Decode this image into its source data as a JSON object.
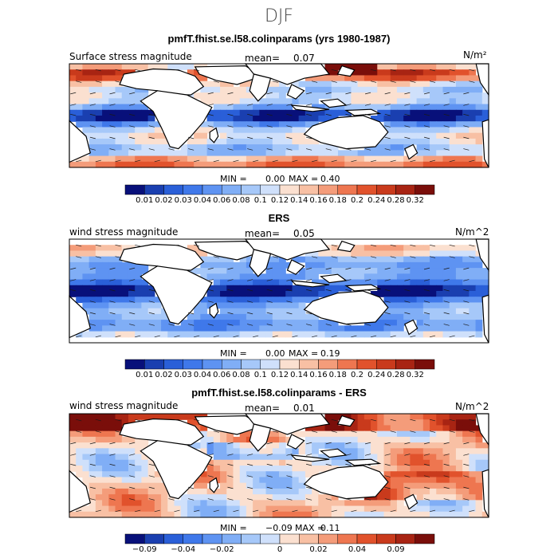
{
  "season_title": "DJF",
  "colors": {
    "palette": [
      "#08107a",
      "#1a3fb0",
      "#2a5fd8",
      "#3f78ea",
      "#5e93f2",
      "#80aef6",
      "#a6c8f9",
      "#cfe0fb",
      "#fbe0d0",
      "#f8c0a4",
      "#f49c7a",
      "#ee7650",
      "#e1522c",
      "#c93a1c",
      "#a82413",
      "#7a0e0a"
    ],
    "land": "#ffffff",
    "coast": "#000000"
  },
  "chart_data": [
    {
      "type": "heatmap",
      "title": "pmfT.fhist.se.l58.colinparams (yrs 1980-1987)",
      "variable_label": "Surface stress magnitude",
      "mean_label": "mean=",
      "mean_value": "0.07",
      "units": "N/m²",
      "min_label": "MIN =",
      "min_value": "0.00",
      "max_label": "MAX =",
      "max_value": "0.40",
      "colorbar_ticks": [
        "0.01",
        "0.02",
        "0.03",
        "0.04",
        "0.06",
        "0.08",
        "0.1",
        "0.12",
        "0.14",
        "0.16",
        "0.18",
        "0.2",
        "0.24",
        "0.28",
        "0.32"
      ],
      "lon_range": [
        -30,
        290
      ],
      "lat_range": [
        -45,
        45
      ]
    },
    {
      "type": "heatmap",
      "title": "ERS",
      "variable_label": "wind stress magnitude",
      "mean_label": "mean=",
      "mean_value": "0.05",
      "units": "N/m^2",
      "min_label": "MIN =",
      "min_value": "0.00",
      "max_label": "MAX =",
      "max_value": "0.19",
      "colorbar_ticks": [
        "0.01",
        "0.02",
        "0.03",
        "0.04",
        "0.06",
        "0.08",
        "0.1",
        "0.12",
        "0.14",
        "0.16",
        "0.18",
        "0.2",
        "0.24",
        "0.28",
        "0.32"
      ],
      "lon_range": [
        -30,
        290
      ],
      "lat_range": [
        -45,
        45
      ]
    },
    {
      "type": "heatmap",
      "title": "pmfT.fhist.se.l58.colinparams - ERS",
      "variable_label": "wind stress magnitude",
      "mean_label": "mean=",
      "mean_value": "0.01",
      "units": "N/m^2",
      "min_label": "MIN =",
      "min_value": "−0.09",
      "max_label": "MAX =",
      "max_value": "0.11",
      "colorbar_ticks": [
        "−0.09",
        "",
        "−0.04",
        "",
        "−0.02",
        "",
        "",
        "0",
        "",
        "0.02",
        "",
        "0.04",
        "",
        "0.09",
        ""
      ],
      "lon_range": [
        -30,
        290
      ],
      "lat_range": [
        -45,
        45
      ]
    }
  ]
}
